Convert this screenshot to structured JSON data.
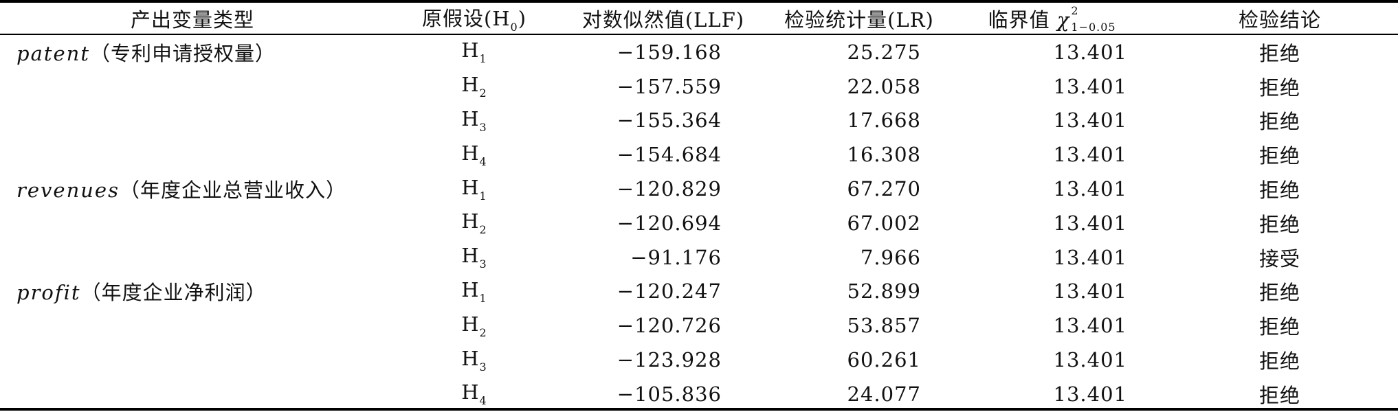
{
  "table": {
    "headers": {
      "variable_type": "产出变量类型",
      "hypothesis_prefix": "原假设(H",
      "hypothesis_sub": "0",
      "hypothesis_suffix": ")",
      "llf": "对数似然值(LLF)",
      "lr": "检验统计量(LR)",
      "critical_prefix": "临界值 ",
      "critical_symbol": "χ",
      "critical_sup": "2",
      "critical_sub": "1−0.05",
      "conclusion": "检验结论"
    },
    "rows": [
      {
        "var_name": "patent",
        "var_desc": "（专利申请授权量）",
        "h_letter": "H",
        "h_sub": "1",
        "llf": "−159.168",
        "lr": "25.275",
        "critical": "13.401",
        "conclusion": "拒绝"
      },
      {
        "var_name": "",
        "var_desc": "",
        "h_letter": "H",
        "h_sub": "2",
        "llf": "−157.559",
        "lr": "22.058",
        "critical": "13.401",
        "conclusion": "拒绝"
      },
      {
        "var_name": "",
        "var_desc": "",
        "h_letter": "H",
        "h_sub": "3",
        "llf": "−155.364",
        "lr": "17.668",
        "critical": "13.401",
        "conclusion": "拒绝"
      },
      {
        "var_name": "",
        "var_desc": "",
        "h_letter": "H",
        "h_sub": "4",
        "llf": "−154.684",
        "lr": "16.308",
        "critical": "13.401",
        "conclusion": "拒绝"
      },
      {
        "var_name": "revenues",
        "var_desc": "（年度企业总营业收入）",
        "h_letter": "H",
        "h_sub": "1",
        "llf": "−120.829",
        "lr": "67.270",
        "critical": "13.401",
        "conclusion": "拒绝"
      },
      {
        "var_name": "",
        "var_desc": "",
        "h_letter": "H",
        "h_sub": "2",
        "llf": "−120.694",
        "lr": "67.002",
        "critical": "13.401",
        "conclusion": "拒绝"
      },
      {
        "var_name": "",
        "var_desc": "",
        "h_letter": "H",
        "h_sub": "3",
        "llf": "−91.176",
        "lr": "7.966",
        "critical": "13.401",
        "conclusion": "接受"
      },
      {
        "var_name": "profit",
        "var_desc": "（年度企业净利润）",
        "h_letter": "H",
        "h_sub": "1",
        "llf": "−120.247",
        "lr": "52.899",
        "critical": "13.401",
        "conclusion": "拒绝"
      },
      {
        "var_name": "",
        "var_desc": "",
        "h_letter": "H",
        "h_sub": "2",
        "llf": "−120.726",
        "lr": "53.857",
        "critical": "13.401",
        "conclusion": "拒绝"
      },
      {
        "var_name": "",
        "var_desc": "",
        "h_letter": "H",
        "h_sub": "3",
        "llf": "−123.928",
        "lr": "60.261",
        "critical": "13.401",
        "conclusion": "拒绝"
      },
      {
        "var_name": "",
        "var_desc": "",
        "h_letter": "H",
        "h_sub": "4",
        "llf": "−105.836",
        "lr": "24.077",
        "critical": "13.401",
        "conclusion": "拒绝"
      }
    ]
  }
}
